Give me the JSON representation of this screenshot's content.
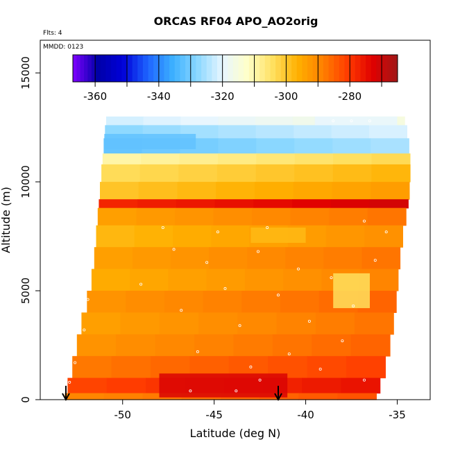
{
  "title": "ORCAS RF04 APO_AO2orig",
  "flights_note": "Flts: 4",
  "date_note": "MMDD: 0123",
  "colors": {
    "colorbar_stops": [
      "#7f00ff",
      "#0000a8",
      "#0000d8",
      "#1e64ff",
      "#3cb0ff",
      "#8cd8ff",
      "#e8f6ff",
      "#ffffc8",
      "#ffe060",
      "#ffb000",
      "#ff8000",
      "#ff3c00",
      "#e00000",
      "#a01818"
    ],
    "sample_marker": "#ffffff",
    "arrow": "#000000"
  },
  "chart_data": {
    "type": "heatmap",
    "title": "ORCAS RF04 APO_AO2orig",
    "xlabel": "Latitude (deg N)",
    "ylabel": "Altitude (m)",
    "xlim": [
      -54.5,
      -33.2
    ],
    "ylim": [
      0,
      16500
    ],
    "xticks": [
      -50,
      -45,
      -40,
      -35
    ],
    "xtick_labels": [
      "-50",
      "-45",
      "-40",
      "-35"
    ],
    "yticks": [
      0,
      5000,
      10000,
      15000
    ],
    "ytick_labels": [
      "0",
      "5000",
      "10000",
      "15000"
    ],
    "colorbar": {
      "min": -367,
      "max": -265,
      "ticks": [
        -360,
        -340,
        -320,
        -300,
        -280
      ],
      "tick_labels": [
        "-360",
        "-340",
        "-320",
        "-300",
        "-280"
      ],
      "segment_edges": [
        -367,
        -360,
        -350,
        -340,
        -330,
        -320,
        -310,
        -300,
        -290,
        -280,
        -270,
        -265
      ]
    },
    "profile_edges": {
      "alt": [
        0,
        1000,
        2000,
        3000,
        4000,
        5000,
        6000,
        7000,
        8000,
        9000,
        10000,
        11000,
        12000,
        12800
      ],
      "left_lat": [
        -53.2,
        -52.9,
        -52.6,
        -52.4,
        -52.1,
        -51.8,
        -51.6,
        -51.5,
        -51.4,
        -51.3,
        -51.2,
        -51.1,
        -51.0,
        -50.9
      ],
      "right_lat": [
        -36.2,
        -35.8,
        -35.5,
        -35.3,
        -35.1,
        -35.0,
        -34.9,
        -34.8,
        -34.6,
        -34.4,
        -34.3,
        -34.3,
        -34.4,
        -34.6
      ]
    },
    "layers": [
      {
        "alt_min": 12600,
        "alt_max": 13000,
        "value": -318
      },
      {
        "alt_min": 12000,
        "alt_max": 12600,
        "value": -324
      },
      {
        "alt_min": 11300,
        "alt_max": 12000,
        "value": -328
      },
      {
        "alt_min": 10800,
        "alt_max": 11300,
        "value": -306
      },
      {
        "alt_min": 10000,
        "alt_max": 10800,
        "value": -300
      },
      {
        "alt_min": 9200,
        "alt_max": 10000,
        "value": -296
      },
      {
        "alt_min": 8800,
        "alt_max": 9200,
        "value": -274
      },
      {
        "alt_min": 8000,
        "alt_max": 8800,
        "value": -290
      },
      {
        "alt_min": 7000,
        "alt_max": 8000,
        "value": -294
      },
      {
        "alt_min": 6000,
        "alt_max": 7000,
        "value": -290
      },
      {
        "alt_min": 5000,
        "alt_max": 6000,
        "value": -292
      },
      {
        "alt_min": 4000,
        "alt_max": 5000,
        "value": -288
      },
      {
        "alt_min": 3000,
        "alt_max": 4000,
        "value": -290
      },
      {
        "alt_min": 2000,
        "alt_max": 3000,
        "value": -288
      },
      {
        "alt_min": 1000,
        "alt_max": 2000,
        "value": -284
      },
      {
        "alt_min": 300,
        "alt_max": 1000,
        "value": -278
      },
      {
        "alt_min": 0,
        "alt_max": 300,
        "value": -286
      }
    ],
    "features": [
      {
        "lat_min": -48,
        "lat_max": -41,
        "alt_min": 100,
        "alt_max": 1200,
        "value": -272
      },
      {
        "lat_min": -38.5,
        "lat_max": -36.5,
        "alt_min": 4200,
        "alt_max": 5800,
        "value": -304
      },
      {
        "lat_min": -43,
        "lat_max": -40,
        "alt_min": 7200,
        "alt_max": 7900,
        "value": -298
      },
      {
        "lat_min": -51,
        "lat_max": -46,
        "alt_min": 11500,
        "alt_max": 12200,
        "value": -332
      },
      {
        "lat_min": -39.5,
        "lat_max": -35,
        "alt_min": 12600,
        "alt_max": 13000,
        "value": -320
      }
    ],
    "flight_arrows_lat": [
      -53.1,
      -41.5
    ],
    "sample_points": [
      [
        -52.9,
        800
      ],
      [
        -52.6,
        1700
      ],
      [
        -52.1,
        3200
      ],
      [
        -51.9,
        4600
      ],
      [
        -51.8,
        6100
      ],
      [
        -47.8,
        7900
      ],
      [
        -46.8,
        4100
      ],
      [
        -45.9,
        2200
      ],
      [
        -45.4,
        6300
      ],
      [
        -44.8,
        7700
      ],
      [
        -44.4,
        5100
      ],
      [
        -43.6,
        3400
      ],
      [
        -43.0,
        1500
      ],
      [
        -42.6,
        6800
      ],
      [
        -42.1,
        7900
      ],
      [
        -41.5,
        4800
      ],
      [
        -40.9,
        2100
      ],
      [
        -40.4,
        6000
      ],
      [
        -39.8,
        3600
      ],
      [
        -39.2,
        1400
      ],
      [
        -38.6,
        5600
      ],
      [
        -38.0,
        2700
      ],
      [
        -37.4,
        4300
      ],
      [
        -36.8,
        900
      ],
      [
        -36.2,
        6400
      ],
      [
        -35.6,
        7700
      ],
      [
        -38.5,
        12800
      ],
      [
        -37.5,
        12800
      ],
      [
        -36.5,
        12800
      ],
      [
        -46.3,
        400
      ],
      [
        -43.8,
        400
      ],
      [
        -42.5,
        900
      ],
      [
        -47.2,
        6900
      ],
      [
        -49.0,
        5300
      ],
      [
        -36.8,
        8200
      ]
    ]
  }
}
